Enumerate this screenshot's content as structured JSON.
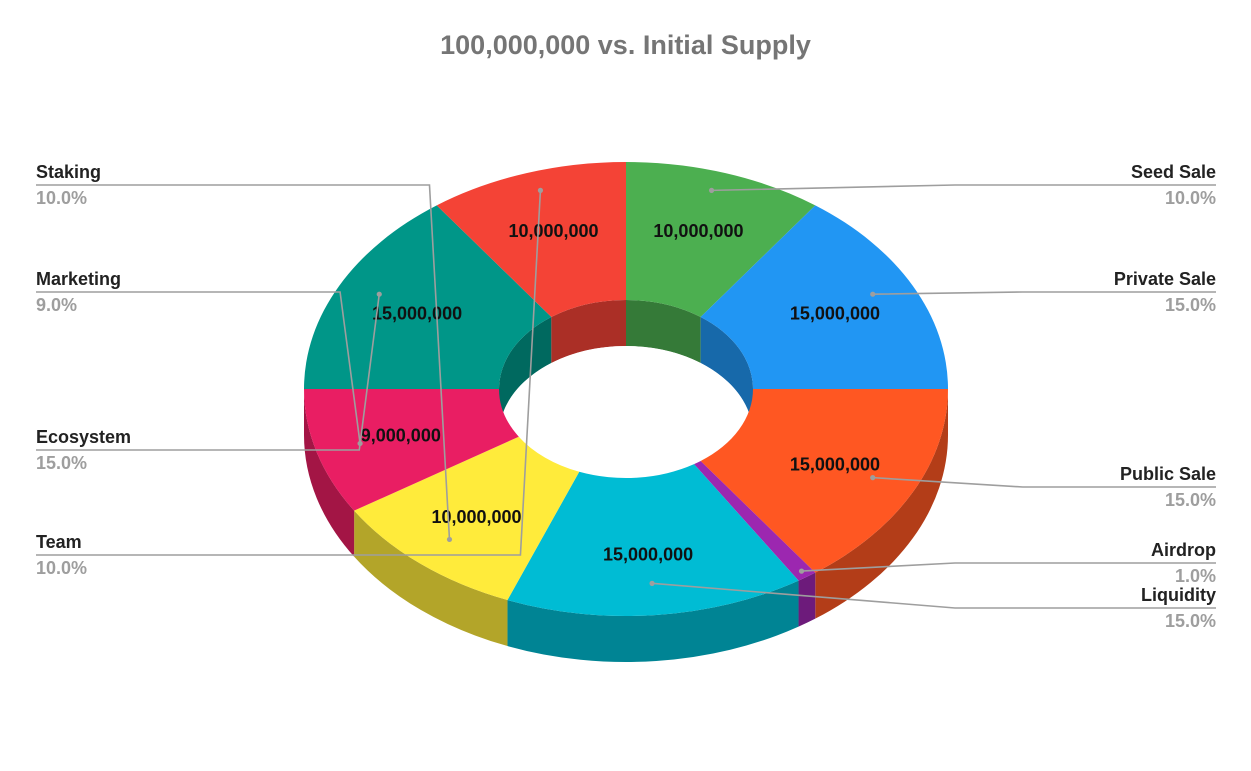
{
  "chart_data": {
    "type": "pie",
    "title": "100,000,000 vs. Initial Supply",
    "slices": [
      {
        "name": "Seed Sale",
        "value": 10000000,
        "value_label": "10,000,000",
        "percent": "10.0%",
        "color": "#4caf50"
      },
      {
        "name": "Private Sale",
        "value": 15000000,
        "value_label": "15,000,000",
        "percent": "15.0%",
        "color": "#2196f3"
      },
      {
        "name": "Public Sale",
        "value": 15000000,
        "value_label": "15,000,000",
        "percent": "15.0%",
        "color": "#ff5722"
      },
      {
        "name": "Airdrop",
        "value": 1000000,
        "value_label": "",
        "percent": "1.0%",
        "color": "#9c27b0"
      },
      {
        "name": "Liquidity",
        "value": 15000000,
        "value_label": "15,000,000",
        "percent": "15.0%",
        "color": "#00bcd4"
      },
      {
        "name": "Staking",
        "value": 10000000,
        "value_label": "10,000,000",
        "percent": "10.0%",
        "color": "#ffeb3b"
      },
      {
        "name": "Marketing",
        "value": 9000000,
        "value_label": "9,000,000",
        "percent": "9.0%",
        "color": "#e91e63"
      },
      {
        "name": "Ecosystem",
        "value": 15000000,
        "value_label": "15,000,000",
        "percent": "15.0%",
        "color": "#009688"
      },
      {
        "name": "Team",
        "value": 10000000,
        "value_label": "10,000,000",
        "percent": "10.0%",
        "color": "#f44336"
      }
    ],
    "style": "3d-donut",
    "legend": "leader-labels"
  }
}
